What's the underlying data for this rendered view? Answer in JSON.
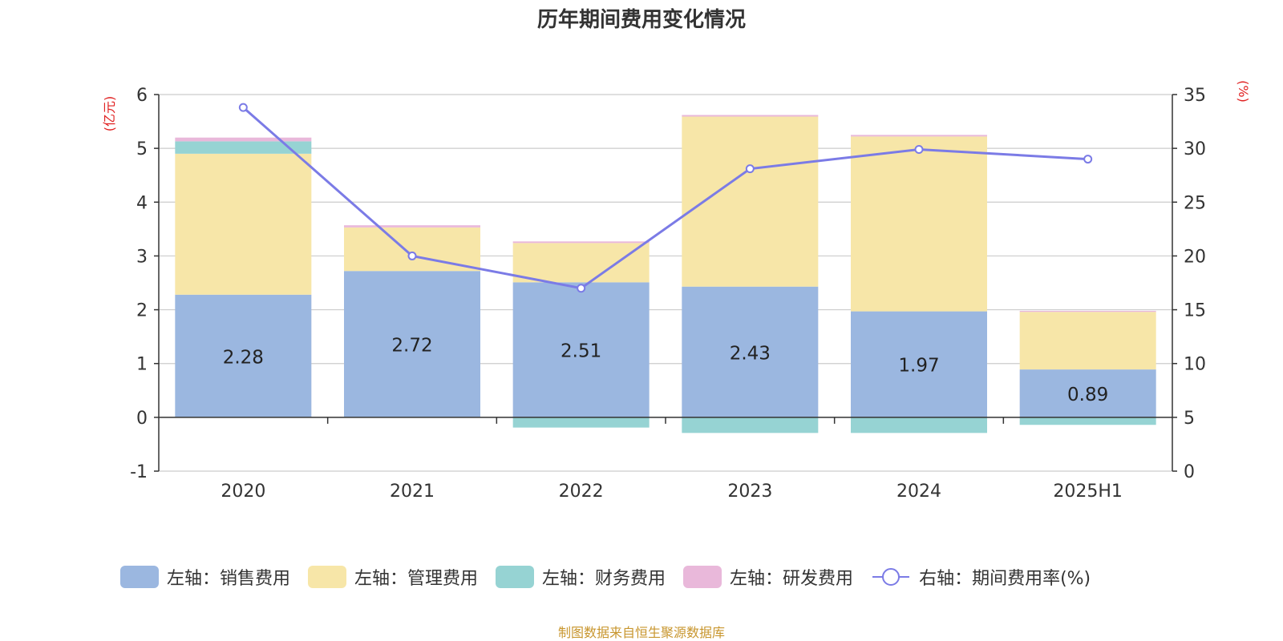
{
  "chart_data": {
    "type": "bar",
    "title": "历年期间费用变化情况",
    "categories": [
      "2020",
      "2021",
      "2022",
      "2023",
      "2024",
      "2025H1"
    ],
    "left_axis": {
      "unit_label": "(亿元)",
      "ylim": [
        -1,
        6
      ],
      "ticks": [
        -1,
        0,
        1,
        2,
        3,
        4,
        5,
        6
      ]
    },
    "right_axis": {
      "unit_label": "(%)",
      "ylim": [
        0,
        35
      ],
      "ticks": [
        0,
        5,
        10,
        15,
        20,
        25,
        30,
        35
      ]
    },
    "grid": true,
    "legend_position": "bottom",
    "series": [
      {
        "name": "左轴：销售费用",
        "kind": "bar",
        "axis": "left",
        "color": "#9bb7e0",
        "values": [
          2.28,
          2.72,
          2.51,
          2.43,
          1.97,
          0.89
        ],
        "labels": [
          "2.28",
          "2.72",
          "2.51",
          "2.43",
          "1.97",
          "0.89"
        ]
      },
      {
        "name": "左轴：管理费用",
        "kind": "bar",
        "axis": "left",
        "color": "#f7e6a8",
        "values": [
          2.62,
          0.81,
          0.73,
          3.16,
          3.25,
          1.07
        ]
      },
      {
        "name": "左轴：财务费用",
        "kind": "bar",
        "axis": "left",
        "color": "#96d3d3",
        "values": [
          0.23,
          0.0,
          -0.19,
          -0.29,
          -0.29,
          -0.14
        ]
      },
      {
        "name": "左轴：研发费用",
        "kind": "bar",
        "axis": "left",
        "color": "#e9b8da",
        "values": [
          0.07,
          0.04,
          0.03,
          0.03,
          0.03,
          0.02
        ]
      },
      {
        "name": "右轴：期间费用率(%)",
        "kind": "line",
        "axis": "right",
        "color": "#7b7be6",
        "values": [
          33.8,
          20.0,
          17.0,
          28.1,
          29.9,
          29.0
        ]
      }
    ]
  },
  "source_note": "制图数据来自恒生聚源数据库"
}
